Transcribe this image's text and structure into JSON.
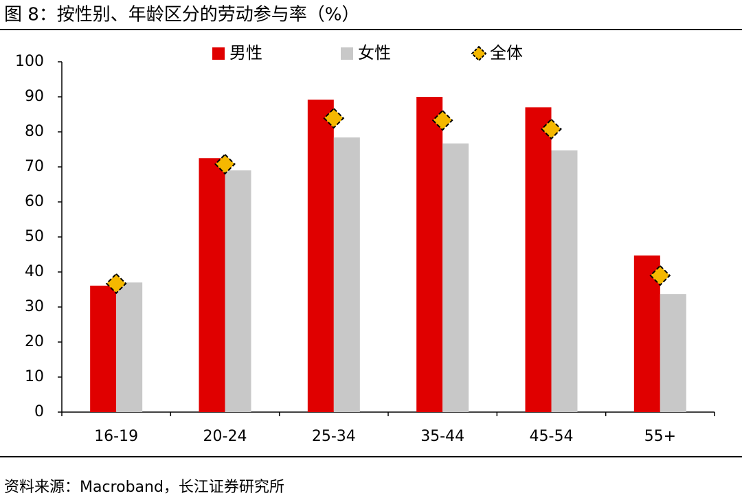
{
  "chart_data": {
    "type": "bar",
    "title": "图 8：按性别、年龄区分的劳动参与率（%）",
    "source": "资料来源：Macroband，长江证券研究所",
    "categories": [
      "16-19",
      "20-24",
      "25-34",
      "35-44",
      "45-54",
      "55+"
    ],
    "series": [
      {
        "name": "男性",
        "color": "#e00000",
        "values": [
          36.1,
          72.5,
          89.2,
          90,
          87,
          44.7
        ]
      },
      {
        "name": "女性",
        "color": "#c8c8c8",
        "values": [
          37,
          69,
          78.4,
          76.7,
          74.7,
          33.7
        ]
      },
      {
        "name": "全体",
        "color": "#f5b800",
        "marker": "diamond",
        "values": [
          36.7,
          70.8,
          83.9,
          83.3,
          80.8,
          39
        ]
      }
    ],
    "ylim": [
      0,
      100
    ],
    "yticks": [
      0,
      10,
      20,
      30,
      40,
      50,
      60,
      70,
      80,
      90,
      100
    ],
    "grid": false
  }
}
